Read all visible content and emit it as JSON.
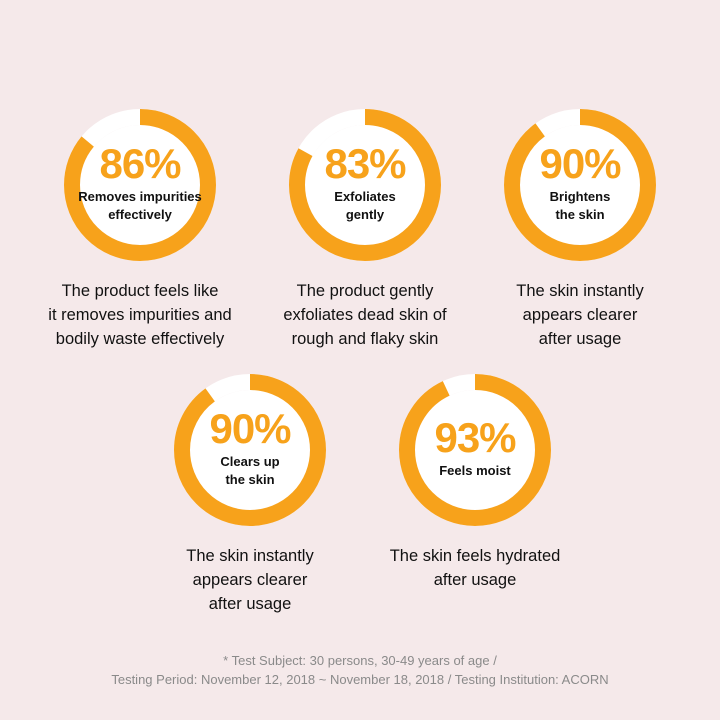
{
  "colors": {
    "ring": "#f7a21b",
    "ring_track": "#ffffff",
    "background": "#f5e9ea"
  },
  "stats": [
    {
      "percent": "86%",
      "value": 0.86,
      "label": "Removes impurities\neffectively",
      "description": "The product feels like\nit removes impurities and\nbodily waste effectively"
    },
    {
      "percent": "83%",
      "value": 0.83,
      "label": "Exfoliates\ngently",
      "description": "The product gently\nexfoliates dead skin of\nrough and flaky skin"
    },
    {
      "percent": "90%",
      "value": 0.9,
      "label": "Brightens\nthe skin",
      "description": "The skin instantly\nappears clearer\nafter usage"
    },
    {
      "percent": "90%",
      "value": 0.9,
      "label": "Clears up\nthe skin",
      "description": "The skin instantly\nappears clearer\nafter usage"
    },
    {
      "percent": "93%",
      "value": 0.93,
      "label": "Feels moist",
      "description": "The skin feels hydrated\nafter usage"
    }
  ],
  "footnote": "* Test Subject: 30 persons, 30-49 years of age /\nTesting Period: November 12, 2018 ~ November 18, 2018 / Testing Institution: ACORN"
}
